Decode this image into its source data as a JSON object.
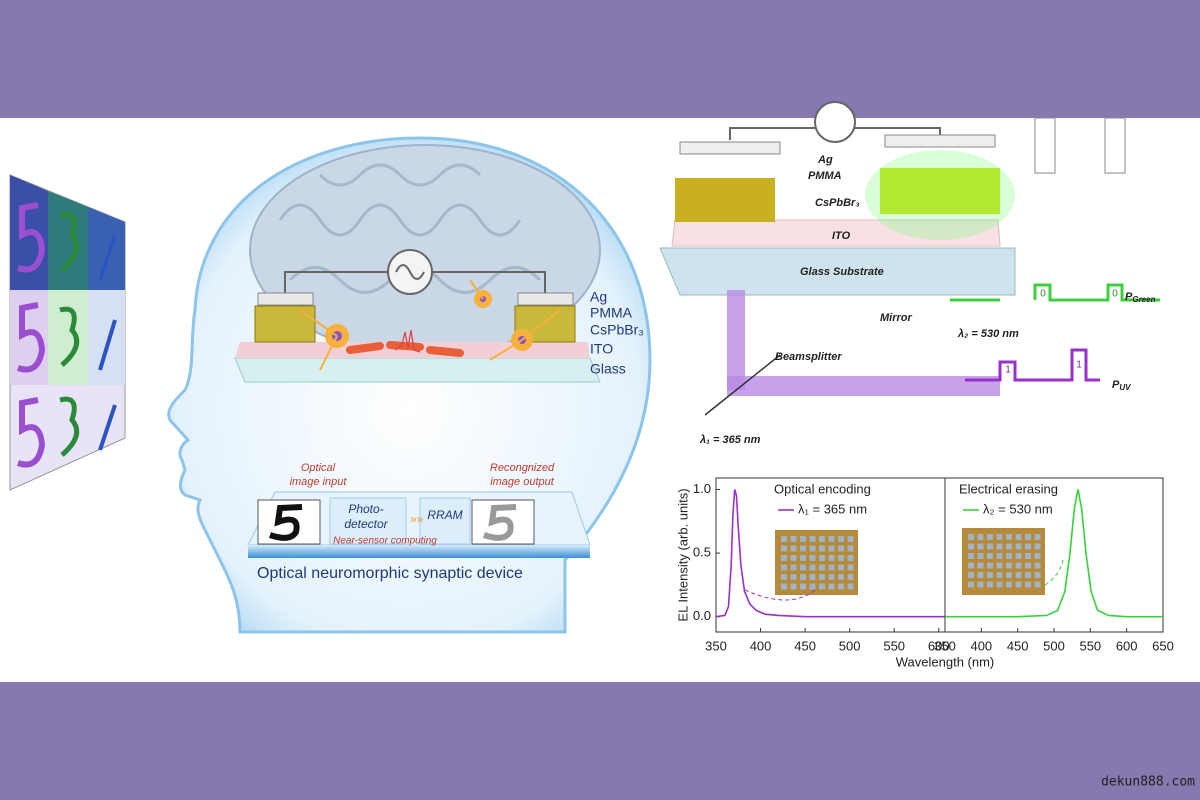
{
  "watermark": "dekun888.com",
  "brain_device": {
    "layers": [
      "Ag",
      "PMMA",
      "CsPbBr₃",
      "ITO",
      "Glass"
    ]
  },
  "workflow": {
    "input_label": [
      "Optical",
      "image input"
    ],
    "photodetector": [
      "Photo-",
      "detector"
    ],
    "rram": "RRAM",
    "output_label": [
      "Recongnized",
      "image output"
    ],
    "computing": "Near-sensor computing",
    "caption": "Optical neuromorphic synaptic device"
  },
  "setup": {
    "ag": "Ag",
    "pmma": "PMMA",
    "perovskite": "CsPbBr₃",
    "ito": "ITO",
    "substrate": "Glass Substrate",
    "mirror": "Mirror",
    "beamsplitter": "Beamsplitter",
    "uv_wavelength": "λ₁ = 365 nm",
    "green_wavelength": "λ₂ = 530 nm",
    "green_power": {
      "symbol": "P",
      "subscript": "Green"
    },
    "uv_power": {
      "symbol": "P",
      "subscript": "UV"
    },
    "green_bit": "0",
    "uv_bit": "1"
  },
  "chart_data": [
    {
      "type": "line",
      "title": "Optical encoding",
      "ylabel": "EL Intensity (arb. units)",
      "x": [
        350,
        360,
        364,
        367,
        369,
        371,
        373,
        375,
        378,
        382,
        388,
        395,
        405,
        420,
        450,
        500,
        550,
        600,
        607
      ],
      "series": [
        {
          "name": "λ₁ = 365 nm",
          "color": "#9b2fc9",
          "values": [
            0,
            0.01,
            0.08,
            0.4,
            0.8,
            1.0,
            0.95,
            0.7,
            0.4,
            0.2,
            0.1,
            0.05,
            0.02,
            0.01,
            0,
            0,
            0,
            0,
            0
          ]
        }
      ],
      "xlim": [
        350,
        607
      ],
      "ylim": [
        -0.12,
        1.09
      ],
      "xticks": [
        350,
        400,
        450,
        500,
        550,
        600
      ],
      "yticks": [
        {
          "value": 0,
          "label": "0.0"
        },
        {
          "value": 0.5,
          "label": "0.5"
        },
        {
          "value": 1,
          "label": "1.0"
        }
      ]
    },
    {
      "type": "line",
      "title": "Electrical erasing",
      "xlabel": "Wavelength (nm)",
      "x": [
        350,
        400,
        450,
        490,
        505,
        515,
        522,
        528,
        533,
        538,
        544,
        551,
        560,
        575,
        600,
        650
      ],
      "series": [
        {
          "name": "λ₂ = 530 nm",
          "color": "#3ccf3c",
          "values": [
            0,
            0,
            0,
            0.01,
            0.05,
            0.2,
            0.5,
            0.85,
            1.0,
            0.85,
            0.5,
            0.2,
            0.05,
            0.01,
            0,
            0
          ]
        }
      ],
      "xlim": [
        350,
        650
      ],
      "ylim": [
        -0.12,
        1.09
      ],
      "xticks": [
        350,
        400,
        450,
        500,
        550,
        600,
        650
      ]
    }
  ]
}
